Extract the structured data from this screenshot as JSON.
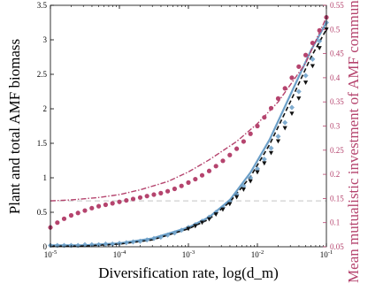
{
  "chart_data": {
    "type": "line",
    "xlabel": "Diversification rate, log(d_m)",
    "ylabel_left": "Plant and total AMF biomass",
    "ylabel_right": "Mean mutualistic investment of AMF community, ᾱ",
    "x_scale": "log",
    "xlim": [
      1e-05,
      0.1
    ],
    "ylim_left": [
      0,
      3.5
    ],
    "ylim_right": [
      0.05,
      0.55
    ],
    "x_ticks": [
      {
        "v": 1e-05,
        "base": "10",
        "exp": "-5"
      },
      {
        "v": 0.0001,
        "base": "10",
        "exp": "-4"
      },
      {
        "v": 0.001,
        "base": "10",
        "exp": "-3"
      },
      {
        "v": 0.01,
        "base": "10",
        "exp": "-2"
      },
      {
        "v": 0.1,
        "base": "10",
        "exp": "-1"
      }
    ],
    "y_ticks_left": [
      0,
      0.5,
      1,
      1.5,
      2,
      2.5,
      3,
      3.5
    ],
    "y_ticks_left_labels": [
      "0",
      "0.5",
      "1",
      "1.5",
      "2",
      "2.5",
      "3",
      "3.5"
    ],
    "y_ticks_right": [
      0.05,
      0.1,
      0.15,
      0.2,
      0.25,
      0.3,
      0.35,
      0.4,
      0.45,
      0.5,
      0.55
    ],
    "y_ticks_right_labels": [
      "0.05",
      "0.1",
      "0.15",
      "0.2",
      "0.25",
      "0.3",
      "0.35",
      "0.4",
      "0.45",
      "0.5",
      "0.55"
    ],
    "reference_line": {
      "axis": "right",
      "y": 0.145
    },
    "colors": {
      "blue": "#6b9fc8",
      "black": "#111111",
      "pink": "#b5446e",
      "grey": "#cfcfcf"
    },
    "series": [
      {
        "axis": "left",
        "style": "blue-line",
        "x": [
          1e-05,
          3e-05,
          0.0001,
          0.0003,
          0.001,
          0.002,
          0.004,
          0.008,
          0.015,
          0.03,
          0.06,
          0.1
        ],
        "y": [
          0.02,
          0.02,
          0.05,
          0.12,
          0.28,
          0.43,
          0.68,
          1.08,
          1.55,
          2.2,
          2.85,
          3.25
        ]
      },
      {
        "axis": "left",
        "style": "black-dashed",
        "x": [
          1e-05,
          3e-05,
          0.0001,
          0.0003,
          0.001,
          0.002,
          0.004,
          0.008,
          0.015,
          0.03,
          0.06,
          0.1
        ],
        "y": [
          0.01,
          0.01,
          0.04,
          0.1,
          0.26,
          0.4,
          0.65,
          1.02,
          1.48,
          2.1,
          2.75,
          3.15
        ]
      },
      {
        "axis": "left",
        "style": "blue-markers",
        "x": [
          1e-05,
          1.26e-05,
          1.58e-05,
          2e-05,
          2.51e-05,
          3.16e-05,
          3.98e-05,
          5.01e-05,
          6.31e-05,
          7.94e-05,
          0.0001,
          0.000126,
          0.000158,
          0.0002,
          0.000251,
          0.000316,
          0.000398,
          0.000501,
          0.000631,
          0.000794,
          0.001,
          0.00126,
          0.00158,
          0.002,
          0.00251,
          0.00316,
          0.00398,
          0.00501,
          0.00631,
          0.00794,
          0.01,
          0.0126,
          0.0158,
          0.02,
          0.0251,
          0.0316,
          0.0398,
          0.0501,
          0.0631,
          0.0794,
          0.1
        ],
        "y": [
          0.02,
          0.02,
          0.02,
          0.02,
          0.02,
          0.03,
          0.03,
          0.03,
          0.04,
          0.04,
          0.05,
          0.06,
          0.07,
          0.08,
          0.1,
          0.12,
          0.14,
          0.17,
          0.2,
          0.24,
          0.28,
          0.32,
          0.37,
          0.43,
          0.5,
          0.57,
          0.66,
          0.76,
          0.88,
          1.0,
          1.13,
          1.27,
          1.43,
          1.6,
          1.8,
          2.02,
          2.25,
          2.48,
          2.72,
          2.98,
          3.25
        ]
      },
      {
        "axis": "left",
        "style": "black-markers",
        "x": [
          0.001,
          0.00126,
          0.00158,
          0.002,
          0.00251,
          0.00316,
          0.00398,
          0.00501,
          0.00631,
          0.00794,
          0.01,
          0.0126,
          0.0158,
          0.02,
          0.0251,
          0.0316,
          0.0398,
          0.0501,
          0.0631,
          0.0794,
          0.1
        ],
        "y": [
          0.26,
          0.3,
          0.35,
          0.4,
          0.47,
          0.54,
          0.62,
          0.72,
          0.83,
          0.95,
          1.08,
          1.21,
          1.36,
          1.53,
          1.72,
          1.93,
          2.15,
          2.38,
          2.62,
          2.88,
          3.15
        ]
      },
      {
        "axis": "right",
        "style": "pink-dashdot",
        "x": [
          1e-05,
          2e-05,
          5e-05,
          0.0001,
          0.0002,
          0.0005,
          0.001,
          0.002,
          0.005,
          0.01,
          0.02,
          0.05,
          0.1
        ],
        "y": [
          0.145,
          0.147,
          0.152,
          0.158,
          0.168,
          0.185,
          0.205,
          0.23,
          0.268,
          0.305,
          0.35,
          0.43,
          0.525
        ]
      },
      {
        "axis": "right",
        "style": "pink-markers",
        "x": [
          1e-05,
          1.26e-05,
          1.58e-05,
          2e-05,
          2.51e-05,
          3.16e-05,
          3.98e-05,
          5.01e-05,
          6.31e-05,
          7.94e-05,
          0.0001,
          0.000126,
          0.000158,
          0.0002,
          0.000251,
          0.000316,
          0.000398,
          0.000501,
          0.000631,
          0.000794,
          0.001,
          0.00126,
          0.00158,
          0.002,
          0.00251,
          0.00316,
          0.00398,
          0.00501,
          0.00631,
          0.00794,
          0.01,
          0.0126,
          0.0158,
          0.02,
          0.0251,
          0.0316,
          0.0398,
          0.0501,
          0.0631,
          0.0794,
          0.1
        ],
        "y": [
          0.09,
          0.1,
          0.108,
          0.115,
          0.12,
          0.125,
          0.13,
          0.134,
          0.137,
          0.14,
          0.143,
          0.146,
          0.149,
          0.152,
          0.155,
          0.158,
          0.161,
          0.165,
          0.17,
          0.176,
          0.183,
          0.19,
          0.198,
          0.207,
          0.217,
          0.228,
          0.24,
          0.253,
          0.268,
          0.284,
          0.3,
          0.318,
          0.337,
          0.357,
          0.378,
          0.4,
          0.423,
          0.447,
          0.472,
          0.498,
          0.525
        ]
      }
    ]
  }
}
